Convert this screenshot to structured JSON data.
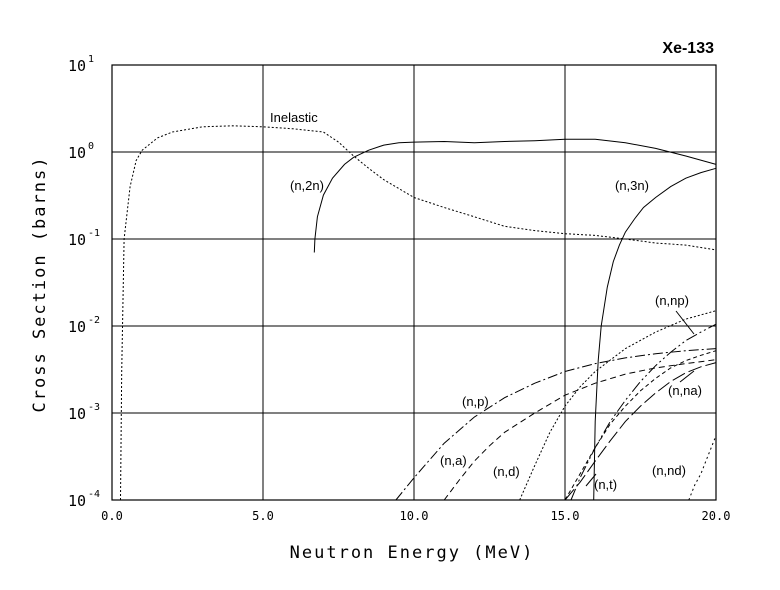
{
  "chart_data": {
    "type": "line",
    "title": "Xe-133",
    "xlabel": "Neutron Energy (MeV)",
    "ylabel": "Cross Section (barns)",
    "xlim": [
      0,
      20
    ],
    "ylim_log10": [
      -4,
      1
    ],
    "yscale": "log",
    "grid": true,
    "x_ticks": [
      "0.0",
      "5.0",
      "10.0",
      "15.0",
      "20.0"
    ],
    "y_ticks": [
      {
        "base": "10",
        "exp": "-4"
      },
      {
        "base": "10",
        "exp": "-3"
      },
      {
        "base": "10",
        "exp": "-2"
      },
      {
        "base": "10",
        "exp": "-1"
      },
      {
        "base": "10",
        "exp": "0"
      },
      {
        "base": "10",
        "exp": "1"
      }
    ],
    "series": [
      {
        "name": "Inelastic",
        "label": "Inelastic",
        "dash": "2,2",
        "x": [
          0.28,
          0.32,
          0.4,
          0.6,
          0.8,
          1.0,
          1.5,
          2.0,
          3.0,
          4.0,
          5.0,
          6.0,
          7.0,
          7.5,
          8.0,
          8.5,
          9.0,
          9.5,
          10.0,
          11.0,
          12.0,
          13.0,
          14.0,
          15.0,
          16.0,
          17.0,
          18.0,
          19.0,
          20.0
        ],
        "y": [
          0.0001,
          0.003,
          0.1,
          0.4,
          0.8,
          1.05,
          1.45,
          1.7,
          1.95,
          2.0,
          1.95,
          1.85,
          1.7,
          1.3,
          0.9,
          0.65,
          0.48,
          0.38,
          0.3,
          0.23,
          0.18,
          0.14,
          0.125,
          0.115,
          0.11,
          0.1,
          0.09,
          0.085,
          0.075
        ]
      },
      {
        "name": "(n,2n)",
        "label": "(n,2n)",
        "dash": "",
        "x": [
          6.7,
          6.72,
          6.8,
          7.0,
          7.3,
          7.7,
          8.0,
          8.5,
          9.0,
          9.5,
          10.0,
          11.0,
          12.0,
          13.0,
          14.0,
          15.0,
          16.0,
          17.0,
          18.0,
          19.0,
          20.0
        ],
        "y": [
          0.07,
          0.1,
          0.18,
          0.32,
          0.5,
          0.72,
          0.87,
          1.05,
          1.2,
          1.28,
          1.3,
          1.32,
          1.28,
          1.32,
          1.35,
          1.4,
          1.4,
          1.28,
          1.1,
          0.9,
          0.72
        ]
      },
      {
        "name": "(n,3n)",
        "label": "(n,3n)",
        "dash": "",
        "x": [
          15.95,
          16.0,
          16.1,
          16.2,
          16.4,
          16.6,
          16.8,
          17.0,
          17.3,
          17.6,
          18.0,
          18.5,
          19.0,
          19.5,
          20.0
        ],
        "y": [
          0.0001,
          0.0008,
          0.004,
          0.01,
          0.028,
          0.055,
          0.085,
          0.12,
          0.17,
          0.23,
          0.3,
          0.4,
          0.5,
          0.58,
          0.65
        ]
      },
      {
        "name": "(n,p)",
        "label": "(n,p)",
        "dash": "10,3,2,3",
        "x": [
          9.4,
          10.0,
          11.0,
          12.0,
          13.0,
          14.0,
          15.0,
          16.0,
          17.0,
          18.0,
          19.0,
          20.0
        ],
        "y": [
          0.0001,
          0.00018,
          0.00045,
          0.0009,
          0.0015,
          0.0022,
          0.003,
          0.0037,
          0.0043,
          0.0048,
          0.0052,
          0.0055
        ]
      },
      {
        "name": "(n,a)",
        "label": "(n,a)",
        "dash": "6,4",
        "x": [
          11.0,
          11.5,
          12.0,
          12.5,
          13.0,
          14.0,
          15.0,
          16.0,
          17.0,
          18.0,
          19.0,
          20.0
        ],
        "y": [
          0.0001,
          0.00017,
          0.00028,
          0.00042,
          0.0006,
          0.001,
          0.0016,
          0.0022,
          0.0028,
          0.0033,
          0.0037,
          0.0041
        ]
      },
      {
        "name": "(n,d)",
        "label": "(n,d)",
        "dash": "2,2",
        "x": [
          13.5,
          14.0,
          14.5,
          15.0,
          15.5,
          16.0,
          17.0,
          18.0,
          19.0,
          20.0
        ],
        "y": [
          0.0001,
          0.00025,
          0.0006,
          0.0012,
          0.002,
          0.003,
          0.0055,
          0.0085,
          0.012,
          0.015
        ]
      },
      {
        "name": "(n,np)",
        "label": "(n,np)",
        "dash": "12,3,2,3,2,3",
        "x": [
          15.2,
          15.5,
          16.0,
          16.5,
          17.0,
          17.5,
          18.0,
          18.5,
          19.0,
          19.5,
          20.0
        ],
        "y": [
          0.0001,
          0.00018,
          0.0004,
          0.0008,
          0.0014,
          0.0023,
          0.0035,
          0.005,
          0.0068,
          0.0085,
          0.0105
        ]
      },
      {
        "name": "(n,t)",
        "label": "(n,t)",
        "dash": "14,4",
        "x": [
          15.0,
          15.5,
          16.0,
          16.5,
          17.0,
          17.5,
          18.0,
          18.5,
          19.0,
          19.5,
          20.0
        ],
        "y": [
          0.0001,
          0.00016,
          0.00028,
          0.00048,
          0.0008,
          0.0012,
          0.0017,
          0.0023,
          0.0029,
          0.0034,
          0.0038
        ]
      },
      {
        "name": "(n,na)",
        "label": "(n,na)",
        "dash": "4,3",
        "x": [
          15.0,
          15.5,
          16.0,
          16.5,
          17.0,
          17.5,
          18.0,
          18.5,
          19.0,
          19.5,
          20.0
        ],
        "y": [
          0.0001,
          0.0002,
          0.0004,
          0.00075,
          0.0012,
          0.0018,
          0.0025,
          0.0033,
          0.004,
          0.0046,
          0.0052
        ]
      },
      {
        "name": "(n,nd)",
        "label": "(n,nd)",
        "dash": "2,3",
        "x": [
          19.1,
          19.3,
          19.5,
          19.7,
          19.9,
          20.0
        ],
        "y": [
          0.0001,
          0.00015,
          0.0002,
          0.0003,
          0.00045,
          0.00055
        ]
      }
    ]
  }
}
